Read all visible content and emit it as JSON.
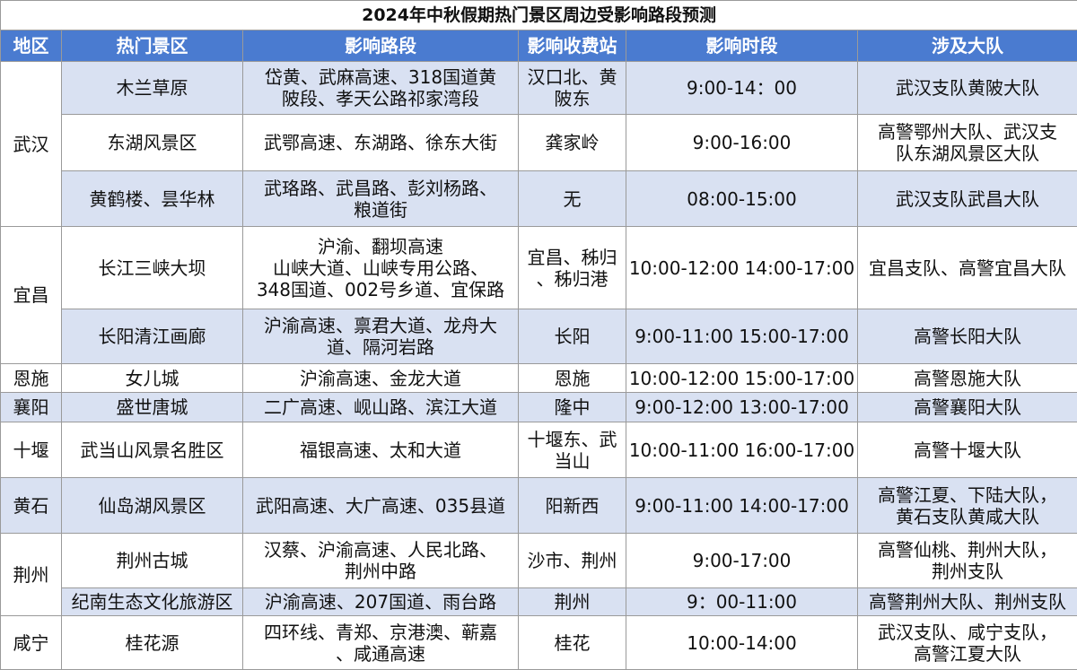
{
  "title": "2024年中秋假期热门景区周边受影响路段预测",
  "header": [
    "地区",
    "热门景区",
    "影响路段",
    "影响收费站",
    "影响时段",
    "涉及大队"
  ],
  "regions": [
    {
      "name": "武汉",
      "rows": [
        [
          "木兰草原",
          "岱黄、武麻高速、318国道黄\n陂段、孝天公路祁家湾段",
          "汉口北、黄\n陂东",
          "9:00-14：00",
          "武汉支队黄陂大队"
        ],
        [
          "东湖风景区",
          "武鄂高速、东湖路、徐东大街",
          "龚家岭",
          "9:00-16:00",
          "高警鄂州大队、武汉支\n队东湖风景区大队"
        ],
        [
          "黄鹤楼、昙华林",
          "武珞路、武昌路、彭刘杨路、\n粮道街",
          "无",
          "08:00-15:00",
          "武汉支队武昌大队"
        ]
      ]
    },
    {
      "name": "宜昌",
      "rows": [
        [
          "长江三峡大坝",
          "沪渝、翻坝高速\n山峡大道、山峡专用公路、\n348国道、002号乡道、宜保路",
          "宜昌、秭归\n、秭归港",
          "10:00-12:00 14:00-17:00",
          "宜昌支队、高警宜昌大队"
        ],
        [
          "长阳清江画廊",
          "沪渝高速、禀君大道、龙舟大\n道、隔河岩路",
          "长阳",
          "9:00-11:00 15:00-17:00",
          "高警长阳大队"
        ]
      ]
    },
    {
      "name": "恩施",
      "rows": [
        [
          "女儿城",
          "沪渝高速、金龙大道",
          "恩施",
          "10:00-12:00 15:00-17:00",
          "高警恩施大队"
        ]
      ]
    },
    {
      "name": "襄阳",
      "rows": [
        [
          "盛世唐城",
          "二广高速、岘山路、滨江大道",
          "隆中",
          "9:00-12:00 13:00-17:00",
          "高警襄阳大队"
        ]
      ]
    },
    {
      "name": "十堰",
      "rows": [
        [
          "武当山风景名胜区",
          "福银高速、太和大道",
          "十堰东、武\n当山",
          "10:00-11:00 16:00-17:00",
          "高警十堰大队"
        ]
      ]
    },
    {
      "name": "黄石",
      "rows": [
        [
          "仙岛湖风景区",
          "武阳高速、大广高速、035县道",
          "阳新西",
          "9:00-11:00 14:00-17:00",
          "高警江夏、下陆大队，\n黄石支队黄咸大队"
        ]
      ]
    },
    {
      "name": "荆州",
      "rows": [
        [
          "荆州古城",
          "汉蔡、沪渝高速、人民北路、\n荆州中路",
          "沙市、荆州",
          "9:00-17:00",
          "高警仙桃、荆州大队，\n荆州支队"
        ],
        [
          "纪南生态文化旅游区",
          "沪渝高速、207国道、雨台路",
          "荆州",
          "9：00-11:00",
          "高警荆州大队、荆州支队"
        ]
      ]
    },
    {
      "name": "咸宁",
      "rows": [
        [
          "桂花源",
          "四环线、青郑、京港澳、蕲嘉\n、咸通高速",
          "桂花",
          "10:00-14:00",
          "武汉支队、咸宁支队，\n高警江夏大队"
        ]
      ]
    }
  ]
}
